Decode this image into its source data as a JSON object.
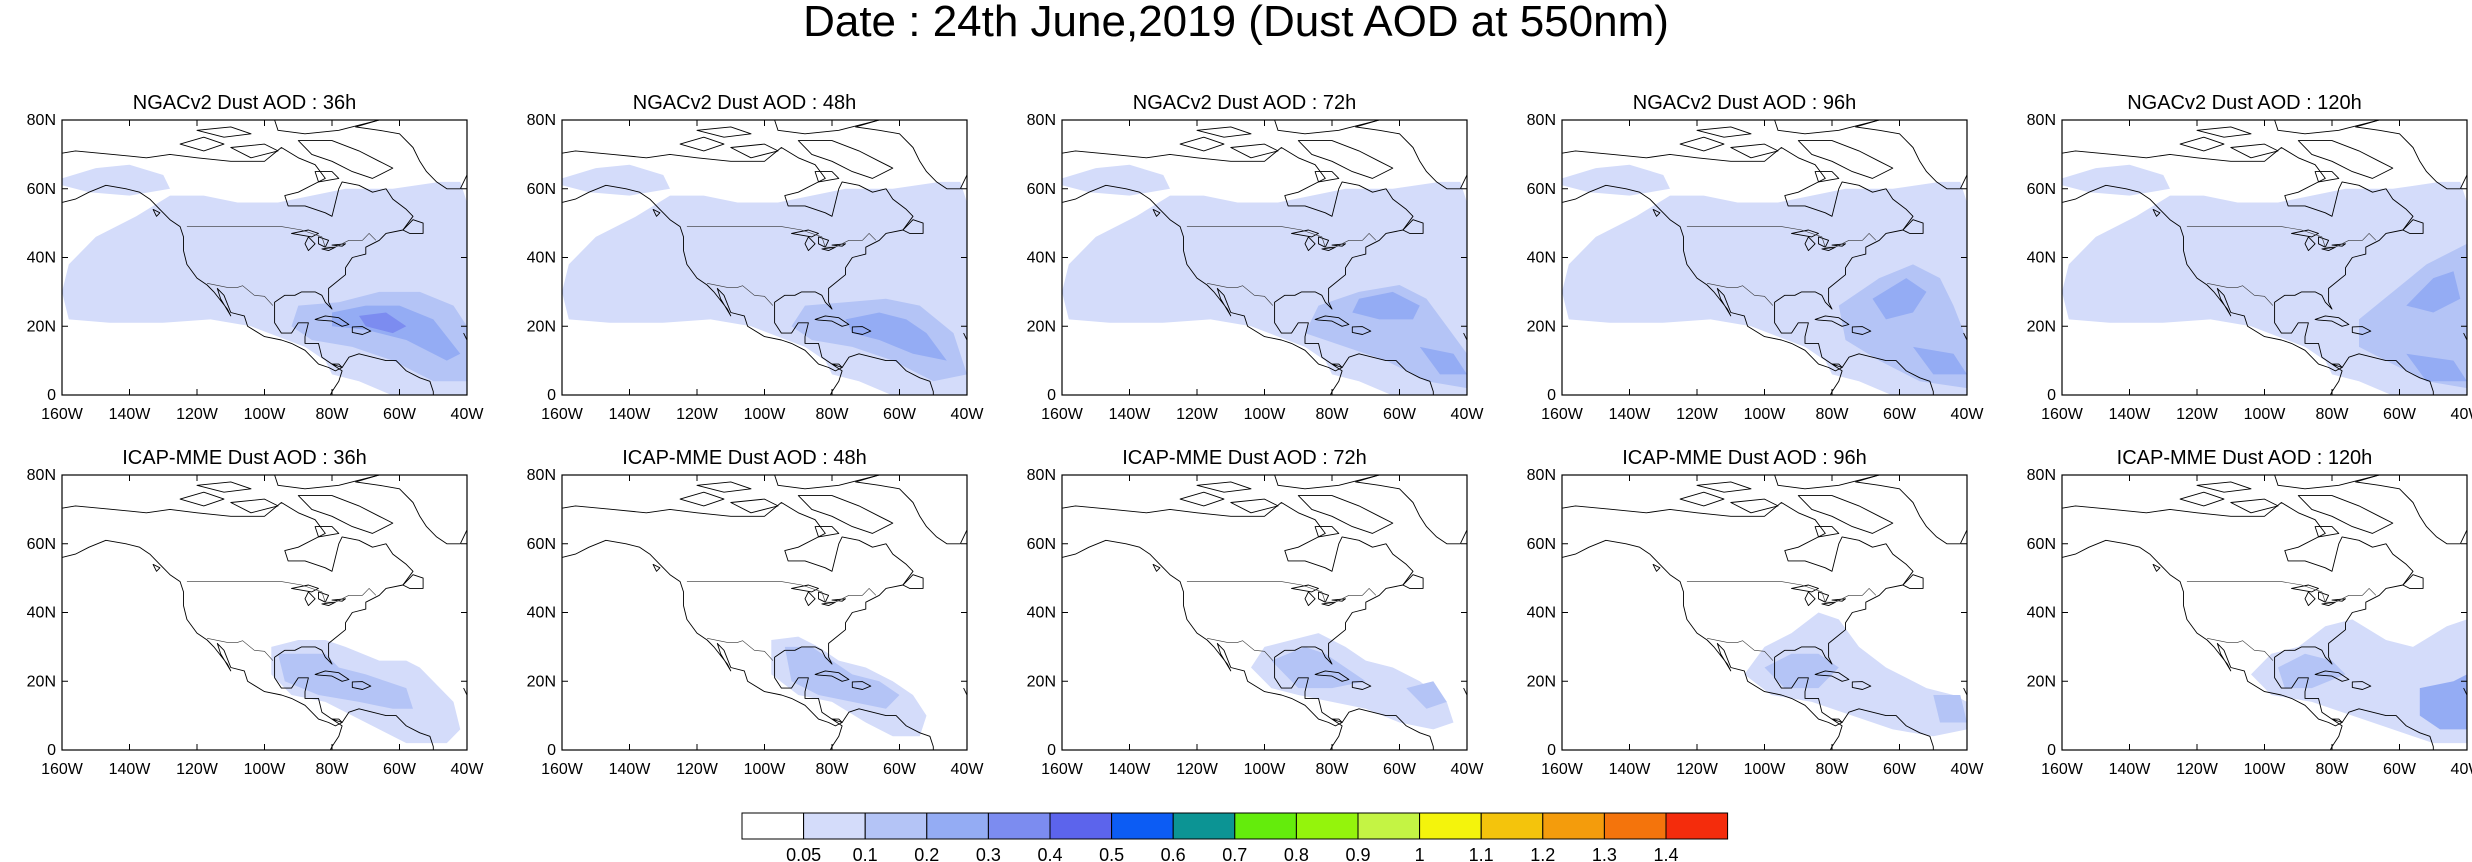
{
  "title": "Date : 24th June,2019 (Dust AOD at 550nm)",
  "axes": {
    "lat_labels": [
      "80N",
      "60N",
      "40N",
      "20N",
      "0"
    ],
    "lon_labels": [
      "160W",
      "140W",
      "120W",
      "100W",
      "80W",
      "60W",
      "40W"
    ]
  },
  "panels": [
    {
      "title": "NGACv2 Dust AOD : 36h",
      "model": "NGACv2",
      "lead": "36h"
    },
    {
      "title": "NGACv2 Dust AOD : 48h",
      "model": "NGACv2",
      "lead": "48h"
    },
    {
      "title": "NGACv2 Dust AOD : 72h",
      "model": "NGACv2",
      "lead": "72h"
    },
    {
      "title": "NGACv2 Dust AOD : 96h",
      "model": "NGACv2",
      "lead": "96h"
    },
    {
      "title": "NGACv2 Dust AOD : 120h",
      "model": "NGACv2",
      "lead": "120h"
    },
    {
      "title": "ICAP-MME Dust AOD : 36h",
      "model": "ICAP-MME",
      "lead": "36h"
    },
    {
      "title": "ICAP-MME Dust AOD : 48h",
      "model": "ICAP-MME",
      "lead": "48h"
    },
    {
      "title": "ICAP-MME Dust AOD : 72h",
      "model": "ICAP-MME",
      "lead": "72h"
    },
    {
      "title": "ICAP-MME Dust AOD : 96h",
      "model": "ICAP-MME",
      "lead": "96h"
    },
    {
      "title": "ICAP-MME Dust AOD : 120h",
      "model": "ICAP-MME",
      "lead": "120h"
    }
  ],
  "colorbar": {
    "labels": [
      "0.05",
      "0.1",
      "0.2",
      "0.3",
      "0.4",
      "0.5",
      "0.6",
      "0.7",
      "0.8",
      "0.9",
      "1",
      "1.1",
      "1.2",
      "1.3",
      "1.4"
    ],
    "colors": [
      "#ffffff",
      "#d4dcfa",
      "#b4c4f6",
      "#94acf4",
      "#7c8cf0",
      "#5c64ec",
      "#0c5cf4",
      "#0c9494",
      "#64ec0c",
      "#94f40c",
      "#c4f444",
      "#f4f40c",
      "#f4c40c",
      "#f49c0c",
      "#f4740c",
      "#f42c0c"
    ]
  },
  "colors": {
    "dust_light": "#d4dcfa",
    "dust_mid": "#b4c4f6",
    "dust_strong": "#94acf4",
    "coast": "#000000"
  }
}
